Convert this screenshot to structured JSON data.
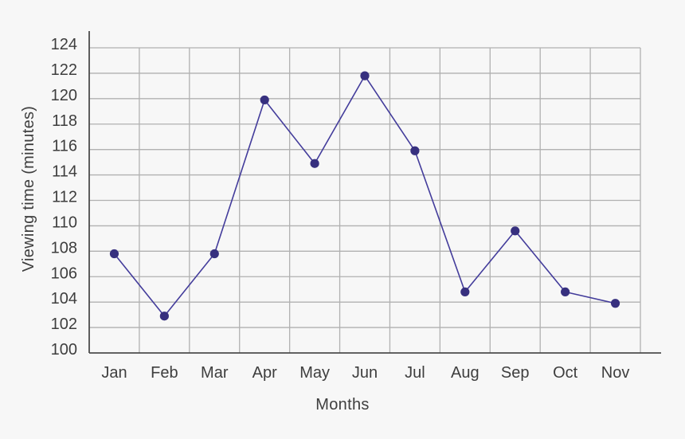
{
  "chart_data": {
    "type": "line",
    "title": "",
    "xlabel": "Months",
    "ylabel": "Viewing time (minutes)",
    "categories": [
      "Jan",
      "Feb",
      "Mar",
      "Apr",
      "May",
      "Jun",
      "Jul",
      "Aug",
      "Sep",
      "Oct",
      "Nov"
    ],
    "series": [
      {
        "name": "Viewing time",
        "values": [
          107.8,
          102.9,
          107.8,
          119.9,
          114.9,
          121.8,
          115.9,
          104.8,
          109.6,
          104.8,
          103.9
        ]
      }
    ],
    "ylim": [
      100,
      124
    ],
    "yticks": [
      100,
      102,
      104,
      106,
      108,
      110,
      112,
      114,
      116,
      118,
      120,
      122,
      124
    ],
    "grid": true,
    "legend_position": "none",
    "colors": {
      "line": "#433c9b",
      "marker": "#37307f",
      "grid": "#b1b1b1",
      "axis": "#4c4c4c",
      "text": "#3e3e3e",
      "background": "#f7f7f7"
    }
  }
}
